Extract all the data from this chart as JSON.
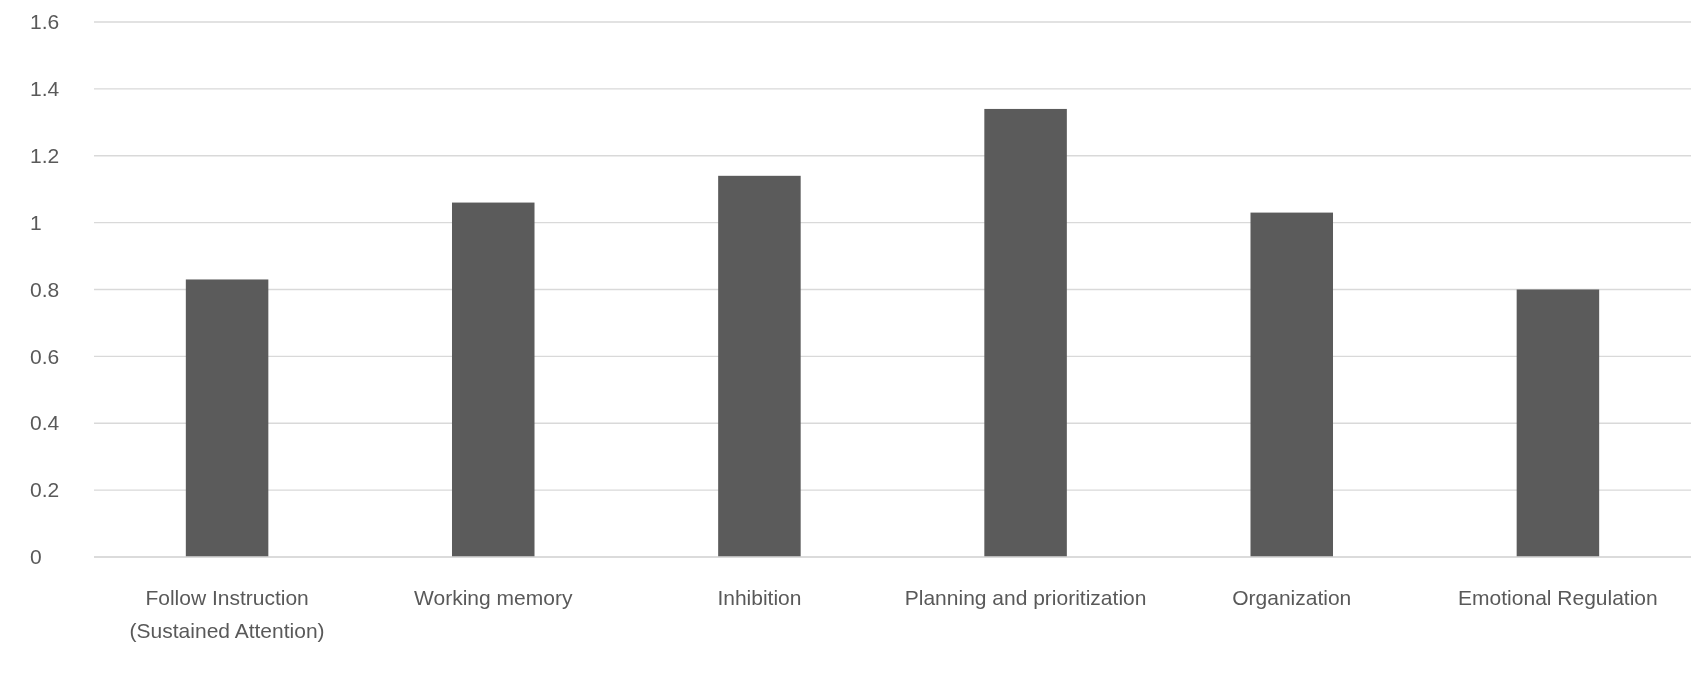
{
  "chart_data": {
    "type": "bar",
    "categories": [
      "Follow Instruction (Sustained Attention)",
      "Working memory",
      "Inhibition",
      "Planning and prioritization",
      "Organization",
      "Emotional Regulation"
    ],
    "values": [
      0.83,
      1.06,
      1.14,
      1.34,
      1.03,
      0.8
    ],
    "color": "#5b5b5b",
    "ylim": [
      0,
      1.6
    ],
    "yticks": [
      0,
      0.2,
      0.4,
      0.6,
      0.8,
      1,
      1.2,
      1.4,
      1.6
    ],
    "grid": "y"
  }
}
